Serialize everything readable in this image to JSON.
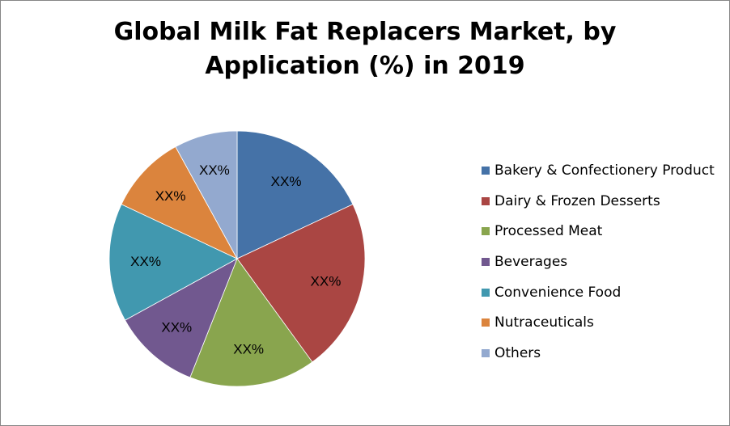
{
  "chart_data": {
    "type": "pie",
    "title": "Global Milk Fat Replacers Market, by Application (%) in 2019",
    "title_lines": [
      "Global Milk Fat Replacers Market, by",
      "Application (%) in 2019"
    ],
    "legend_position": "right",
    "slices": [
      {
        "name": "Bakery & Confectionery Product",
        "value": 18,
        "label": "XX%",
        "color": "#4572A7"
      },
      {
        "name": "Dairy & Frozen Desserts",
        "value": 22,
        "label": "XX%",
        "color": "#AA4643"
      },
      {
        "name": "Processed Meat",
        "value": 16,
        "label": "XX%",
        "color": "#89A54E"
      },
      {
        "name": "Beverages",
        "value": 11,
        "label": "XX%",
        "color": "#71588F"
      },
      {
        "name": "Convenience Food",
        "value": 15,
        "label": "XX%",
        "color": "#4198AF"
      },
      {
        "name": "Nutraceuticals",
        "value": 10,
        "label": "XX%",
        "color": "#DB843D"
      },
      {
        "name": "Others",
        "value": 8,
        "label": "XX%",
        "color": "#93A9CF"
      }
    ]
  }
}
